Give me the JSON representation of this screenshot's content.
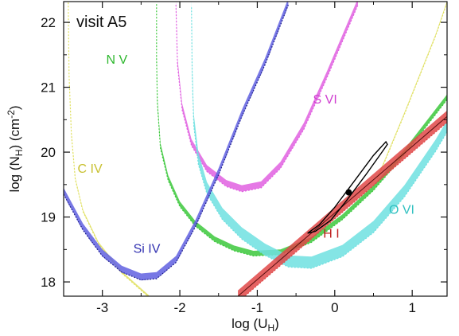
{
  "chart_data": {
    "type": "line",
    "annotation": "visit A5",
    "xlabel": "log (U",
    "xlabel_sub": "H",
    "xlabel_end": ")",
    "ylabel": "log (N",
    "ylabel_sub": "H",
    "ylabel_end": ") (cm",
    "ylabel_sup": "-2",
    "ylabel_close": ")",
    "xlim": [
      -3.5,
      1.45
    ],
    "ylim": [
      17.78,
      22.32
    ],
    "xticks": [
      -3,
      -2,
      -1,
      0,
      1
    ],
    "xtick_labels": [
      "-3",
      "-2",
      "-1",
      "0",
      "1"
    ],
    "yticks": [
      18,
      19,
      20,
      21,
      22
    ],
    "ytick_labels": [
      "18",
      "19",
      "20",
      "21",
      "22"
    ],
    "colors": {
      "N V": "#3cc83c",
      "S VI": "#e060e0",
      "O VI": "#6ee0e0",
      "C IV": "#e0e060",
      "Si IV": "#6060e0",
      "H I": "#e04848"
    },
    "series": [
      {
        "name": "N V",
        "width": 0.04,
        "label_pos": [
          -2.95,
          21.36
        ],
        "x": [
          -2.3,
          -2.3,
          -2.29,
          -2.25,
          -2.15,
          -2.0,
          -1.8,
          -1.55,
          -1.3,
          -1.05,
          -0.7,
          -0.3,
          0.1,
          0.5,
          0.9,
          1.45
        ],
        "y": [
          22.32,
          21.5,
          20.8,
          20.1,
          19.6,
          19.2,
          18.9,
          18.66,
          18.52,
          18.44,
          18.46,
          18.65,
          19.0,
          19.45,
          20.0,
          20.85
        ]
      },
      {
        "name": "S VI",
        "width": 0.05,
        "label_pos": [
          -0.28,
          20.75
        ],
        "x": [
          -2.05,
          -2.03,
          -1.97,
          -1.85,
          -1.65,
          -1.4,
          -1.2,
          -0.95,
          -0.7,
          -0.4,
          -0.1,
          0.3
        ],
        "y": [
          22.32,
          21.4,
          20.7,
          20.15,
          19.75,
          19.52,
          19.44,
          19.5,
          19.8,
          20.4,
          21.2,
          22.32
        ]
      },
      {
        "name": "O VI",
        "width": 0.09,
        "label_pos": [
          0.7,
          19.05
        ],
        "x": [
          -1.85,
          -1.84,
          -1.82,
          -1.76,
          -1.65,
          -1.45,
          -1.2,
          -0.9,
          -0.6,
          -0.3,
          0.1,
          0.5,
          0.9,
          1.3,
          1.45
        ],
        "y": [
          22.32,
          21.3,
          20.5,
          19.9,
          19.45,
          19.05,
          18.75,
          18.5,
          18.32,
          18.3,
          18.48,
          18.85,
          19.4,
          20.1,
          20.4
        ]
      },
      {
        "name": "C IV",
        "width": 0.015,
        "label_pos": [
          -3.32,
          19.68
        ],
        "x": [
          -3.44,
          -3.43,
          -3.4,
          -3.35,
          -3.25,
          -3.05,
          -2.75,
          -2.4
        ],
        "y": [
          22.32,
          21.2,
          20.3,
          19.6,
          19.1,
          18.6,
          18.15,
          17.78
        ],
        "x2": [
          0.55,
          0.9,
          1.3,
          1.45
        ],
        "y2": [
          19.6,
          20.6,
          21.8,
          22.32
        ]
      },
      {
        "name": "Si IV",
        "width": 0.05,
        "label_pos": [
          -2.6,
          18.45
        ],
        "x": [
          -3.5,
          -3.25,
          -3.0,
          -2.75,
          -2.5,
          -2.3,
          -2.05,
          -1.8,
          -1.5,
          -1.2,
          -0.9,
          -0.6
        ],
        "y": [
          19.4,
          18.85,
          18.45,
          18.2,
          18.08,
          18.1,
          18.35,
          18.9,
          19.7,
          20.6,
          21.4,
          22.32
        ]
      },
      {
        "name": "H I",
        "width": 0.09,
        "label_pos": [
          -0.15,
          18.68
        ],
        "x": [
          -1.25,
          1.45
        ],
        "y": [
          17.78,
          20.55
        ]
      }
    ],
    "contour": {
      "x": [
        -0.35,
        -0.25,
        -0.05,
        0.15,
        0.4,
        0.58,
        0.68,
        0.66,
        0.5,
        0.25,
        0.0,
        -0.2,
        -0.35
      ],
      "y": [
        18.75,
        18.78,
        18.95,
        19.25,
        19.65,
        19.95,
        20.12,
        20.16,
        19.95,
        19.55,
        19.15,
        18.88,
        18.75
      ]
    },
    "best_fit": [
      0.18,
      19.38
    ]
  }
}
